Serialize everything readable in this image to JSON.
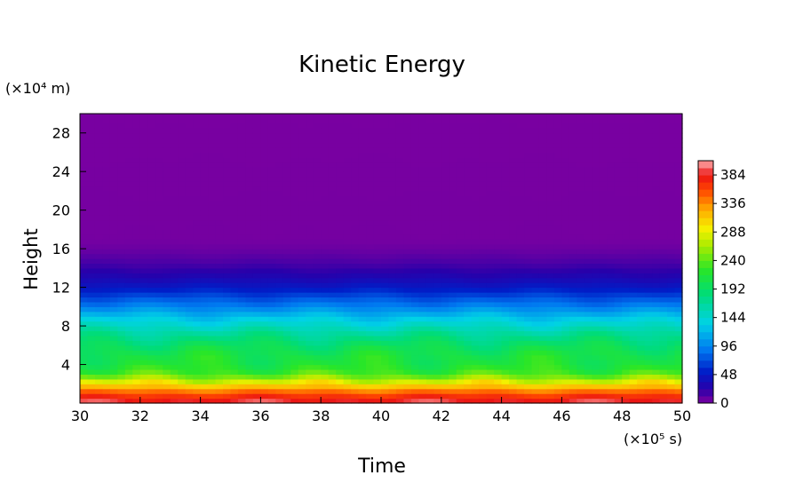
{
  "chart_data": {
    "type": "heatmap",
    "title": "Kinetic Energy",
    "xlabel": "Time",
    "ylabel": "Height",
    "x_unit": "(×10⁵ s)",
    "y_unit": "(×10⁴ m)",
    "xlim": [
      30,
      50
    ],
    "ylim": [
      0,
      30
    ],
    "x_ticks": [
      30,
      32,
      34,
      36,
      38,
      40,
      42,
      44,
      46,
      48,
      50
    ],
    "y_ticks": [
      4,
      8,
      12,
      16,
      20,
      24,
      28
    ],
    "colorbar": {
      "min": 0,
      "max": 408,
      "ticks": [
        0,
        48,
        96,
        144,
        192,
        240,
        288,
        336,
        384
      ]
    },
    "description_profile": {
      "height": [
        0,
        1,
        2,
        3,
        4,
        5,
        6,
        7,
        8,
        9,
        10,
        11,
        12,
        13,
        14,
        15,
        16,
        17,
        30
      ],
      "kinetic_energy": [
        395,
        360,
        300,
        235,
        215,
        210,
        195,
        175,
        150,
        125,
        95,
        72,
        48,
        32,
        20,
        12,
        6,
        3,
        2
      ]
    }
  }
}
